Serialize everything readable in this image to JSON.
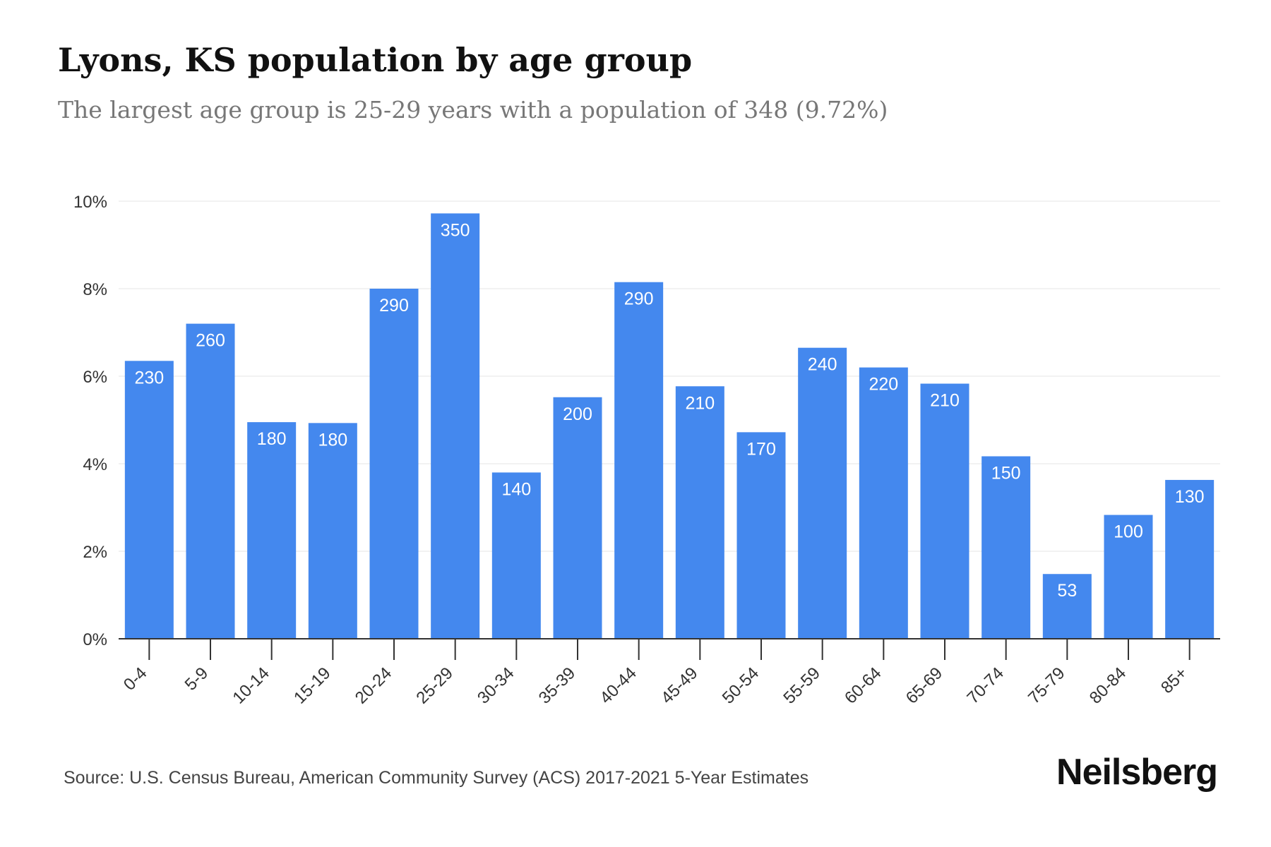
{
  "title": "Lyons, KS population by age group",
  "subtitle": "The largest age group is 25-29 years with a population of 348 (9.72%)",
  "source": "Source: U.S. Census Bureau, American Community Survey (ACS) 2017-2021 5-Year Estimates",
  "brand": "Neilsberg",
  "colors": {
    "bar": "#4488EE",
    "bar_label": "#FFFFFF",
    "grid": "#EEEEEE",
    "axis": "#333333",
    "text": "#333333"
  },
  "chart_data": {
    "type": "bar",
    "categories": [
      "0-4",
      "5-9",
      "10-14",
      "15-19",
      "20-24",
      "25-29",
      "30-34",
      "35-39",
      "40-44",
      "45-49",
      "50-54",
      "55-59",
      "60-64",
      "65-69",
      "70-74",
      "75-79",
      "80-84",
      "85+"
    ],
    "values": [
      6.35,
      7.2,
      4.95,
      4.93,
      8.0,
      9.72,
      3.8,
      5.52,
      8.15,
      5.77,
      4.72,
      6.65,
      6.2,
      5.83,
      4.17,
      1.48,
      2.83,
      3.63
    ],
    "data_labels": [
      "230",
      "260",
      "180",
      "180",
      "290",
      "350",
      "140",
      "200",
      "290",
      "210",
      "170",
      "240",
      "220",
      "210",
      "150",
      "53",
      "100",
      "130"
    ],
    "yticks": [
      "0%",
      "2%",
      "4%",
      "6%",
      "8%",
      "10%"
    ],
    "ytick_values": [
      0,
      2,
      4,
      6,
      8,
      10
    ],
    "ylim": [
      0,
      10
    ],
    "xlabel": "",
    "ylabel": "",
    "grid": true,
    "legend": "none"
  }
}
